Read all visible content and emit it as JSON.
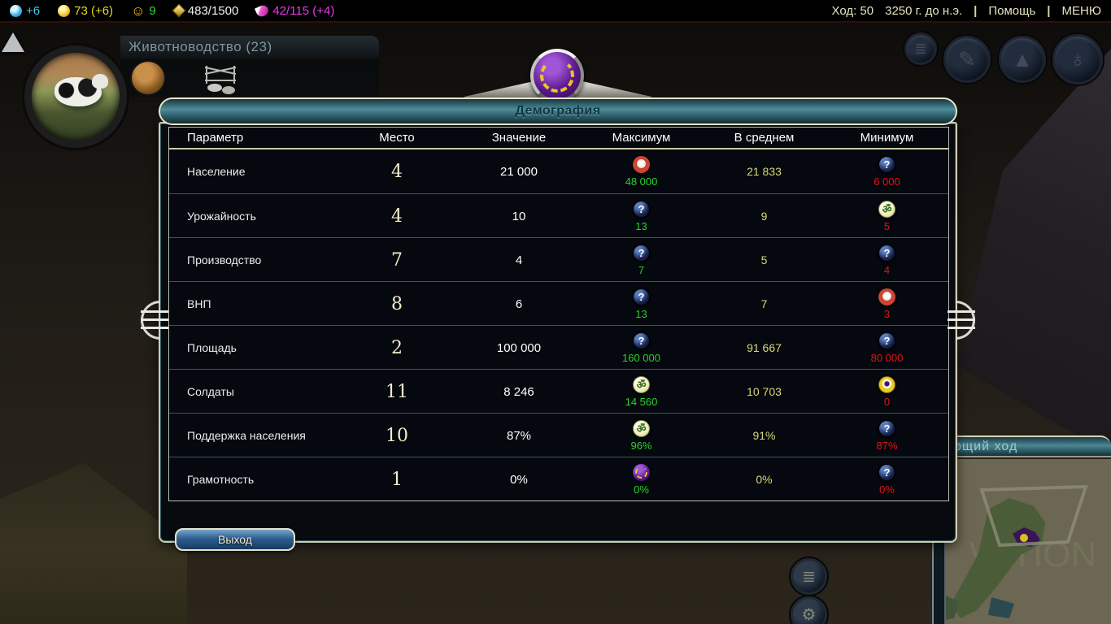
{
  "status_bar": {
    "science": "+6",
    "gold": "73 (+6)",
    "happiness": "9",
    "great_people": "483/1500",
    "culture": "42/115 (+4)",
    "turn": "Ход: 50",
    "date": "3250 г. до н.э.",
    "separator": "|",
    "help": "Помощь",
    "menu": "МЕНЮ"
  },
  "research_bar": {
    "label": "Животноводство (23)"
  },
  "dialog": {
    "title": "Демография",
    "exit_button": "Выход",
    "icons": {
      "question_glyph": "?"
    },
    "table": {
      "headers": [
        "Параметр",
        "Место",
        "Значение",
        "Максимум",
        "В среднем",
        "Минимум"
      ],
      "rows": [
        {
          "param": "Население",
          "rank": "4",
          "value": "21 000",
          "max_icon": "star",
          "max": "48 000",
          "avg": "21 833",
          "min_icon": "question",
          "min": "6 000"
        },
        {
          "param": "Урожайность",
          "rank": "4",
          "value": "10",
          "max_icon": "question",
          "max": "13",
          "avg": "9",
          "min_icon": "curl",
          "min": "5"
        },
        {
          "param": "Производство",
          "rank": "7",
          "value": "4",
          "max_icon": "question",
          "max": "7",
          "avg": "5",
          "min_icon": "question",
          "min": "4"
        },
        {
          "param": "ВНП",
          "rank": "8",
          "value": "6",
          "max_icon": "question",
          "max": "13",
          "avg": "7",
          "min_icon": "star",
          "min": "3"
        },
        {
          "param": "Площадь",
          "rank": "2",
          "value": "100 000",
          "max_icon": "question",
          "max": "160 000",
          "avg": "91 667",
          "min_icon": "question",
          "min": "80 000"
        },
        {
          "param": "Солдаты",
          "rank": "11",
          "value": "8 246",
          "max_icon": "curl",
          "max": "14 560",
          "avg": "10 703",
          "min_icon": "eye",
          "min": "0"
        },
        {
          "param": "Поддержка населения",
          "rank": "10",
          "value": "87%",
          "max_icon": "curl",
          "max": "96%",
          "avg": "91%",
          "min_icon": "question",
          "min": "87%"
        },
        {
          "param": "Грамотность",
          "rank": "1",
          "value": "0%",
          "max_icon": "laurel",
          "max": "0%",
          "avg": "0%",
          "min_icon": "question",
          "min": "0%"
        }
      ]
    }
  },
  "next_turn_panel": {
    "label": "ющий ход"
  },
  "minimap": {
    "watermark": "VATION"
  },
  "colors": {
    "science": "#49c8e8",
    "gold": "#e8d520",
    "happy": "#38d838",
    "culture": "#e838e8",
    "max": "#2bd32b",
    "avg": "#d9d977",
    "min": "#e11414"
  }
}
